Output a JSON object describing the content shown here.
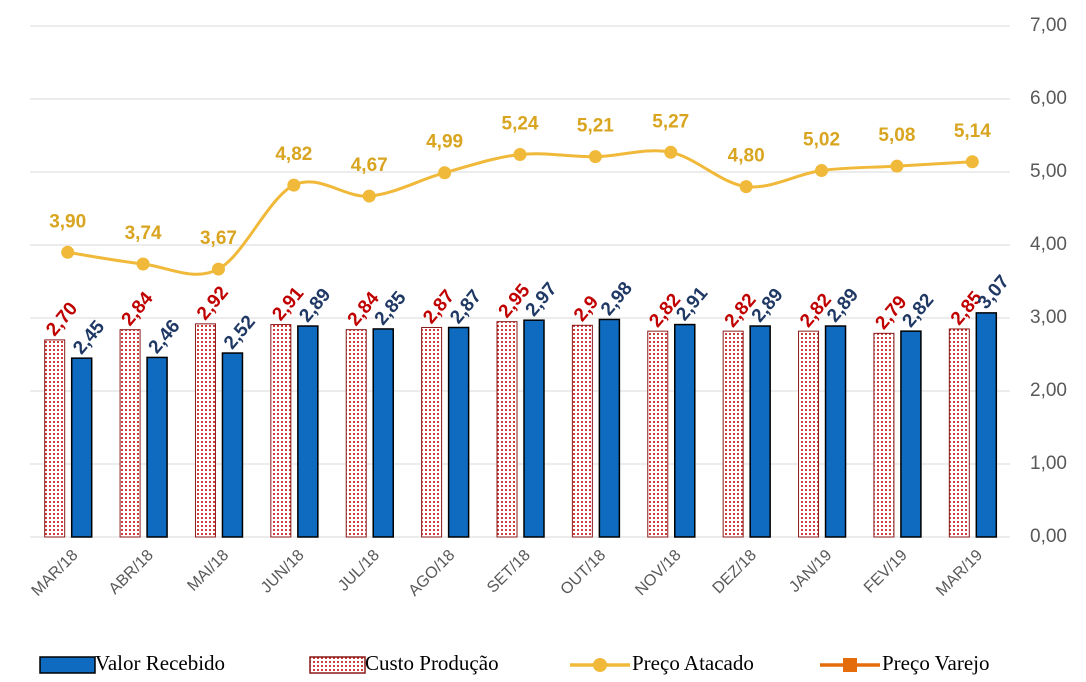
{
  "chart_data": {
    "type": "bar_line",
    "categories": [
      "MAR/18",
      "ABR/18",
      "MAI/18",
      "JUN/18",
      "JUL/18",
      "AGO/18",
      "SET/18",
      "OUT/18",
      "NOV/18",
      "DEZ/18",
      "JAN/19",
      "FEV/19",
      "MAR/19"
    ],
    "series": [
      {
        "name": "Valor Recebido",
        "type": "bar",
        "color": "#0f6bbf",
        "values": [
          2.45,
          2.46,
          2.52,
          2.89,
          2.85,
          2.87,
          2.97,
          2.98,
          2.91,
          2.89,
          2.89,
          2.82,
          3.07
        ],
        "value_labels": [
          "2,45",
          "2,46",
          "2,52",
          "2,89",
          "2,85",
          "2,87",
          "2,97",
          "2,98",
          "2,91",
          "2,89",
          "2,89",
          "2,82",
          "3,07"
        ],
        "label_color": "#1f3864"
      },
      {
        "name": "Custo Produção",
        "type": "bar",
        "color": "#c00000",
        "values": [
          2.7,
          2.84,
          2.92,
          2.91,
          2.84,
          2.87,
          2.95,
          2.9,
          2.82,
          2.82,
          2.82,
          2.79,
          2.85
        ],
        "value_labels": [
          "2,70",
          "2,84",
          "2,92",
          "2,91",
          "2,84",
          "2,87",
          "2,95",
          "2,9",
          "2,82",
          "2,82",
          "2,82",
          "2,79",
          "2,85"
        ],
        "label_color": "#c00000"
      },
      {
        "name": "Preço Atacado",
        "type": "line",
        "color": "#f0b93a",
        "values": [
          3.9,
          3.74,
          3.67,
          4.82,
          4.67,
          4.99,
          5.24,
          5.21,
          5.27,
          4.8,
          5.02,
          5.08,
          5.14
        ],
        "value_labels": [
          "3,90",
          "3,74",
          "3,67",
          "4,82",
          "4,67",
          "4,99",
          "5,24",
          "5,21",
          "5,27",
          "4,80",
          "5,02",
          "5,08",
          "5,14"
        ],
        "label_color": "#d9a520"
      },
      {
        "name": "Preço Varejo",
        "type": "line",
        "color": "#e46c0a",
        "values": [
          null,
          null,
          null,
          null,
          null,
          null,
          null,
          null,
          null,
          null,
          null,
          null,
          null
        ]
      }
    ],
    "ylim": [
      0,
      7
    ],
    "yticks": [
      {
        "value": 0,
        "label": "0,00"
      },
      {
        "value": 1,
        "label": "1,00"
      },
      {
        "value": 2,
        "label": "2,00"
      },
      {
        "value": 3,
        "label": "3,00"
      },
      {
        "value": 4,
        "label": "4,00"
      },
      {
        "value": 5,
        "label": "5,00"
      },
      {
        "value": 6,
        "label": "6,00"
      },
      {
        "value": 7,
        "label": "7,00"
      }
    ],
    "grid": true,
    "y_axis_side": "right",
    "legend": "bottom"
  }
}
